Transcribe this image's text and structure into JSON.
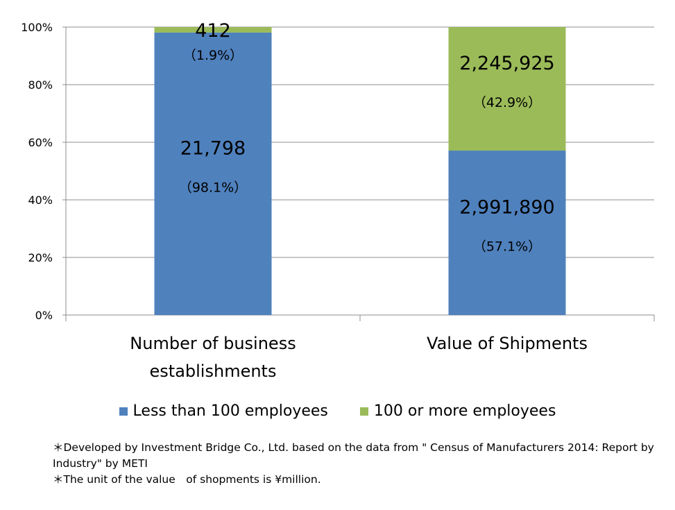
{
  "chart_data": {
    "type": "stacked-bar-100",
    "categories": [
      [
        "Number of business",
        "establishments"
      ],
      [
        "Value of Shipments"
      ]
    ],
    "series": [
      {
        "name": "Less than 100 employees",
        "color": "#4f81bd",
        "values": [
          98.1,
          57.1
        ],
        "value_labels": [
          "21,798",
          "2,991,890"
        ],
        "pct_labels": [
          "（98.1%）",
          "（57.1%）"
        ]
      },
      {
        "name": "100 or more employees",
        "color": "#9bbb59",
        "values": [
          1.9,
          42.9
        ],
        "value_labels": [
          "412",
          "2,245,925"
        ],
        "pct_labels": [
          "（1.9%）",
          "（42.9%）"
        ]
      }
    ],
    "ylim": [
      0,
      100
    ],
    "yticks": [
      0,
      20,
      40,
      60,
      80,
      100
    ],
    "ytick_labels": [
      "0%",
      "20%",
      "40%",
      "60%",
      "80%",
      "100%"
    ],
    "grid": true,
    "legend_position": "bottom"
  },
  "notes": [
    "＊Developed by Investment Bridge Co., Ltd. based on the data from \" Census of Manufacturers 2014: Report by Industry\" by METI",
    "＊The unit of the value　of shopments is ¥million."
  ]
}
